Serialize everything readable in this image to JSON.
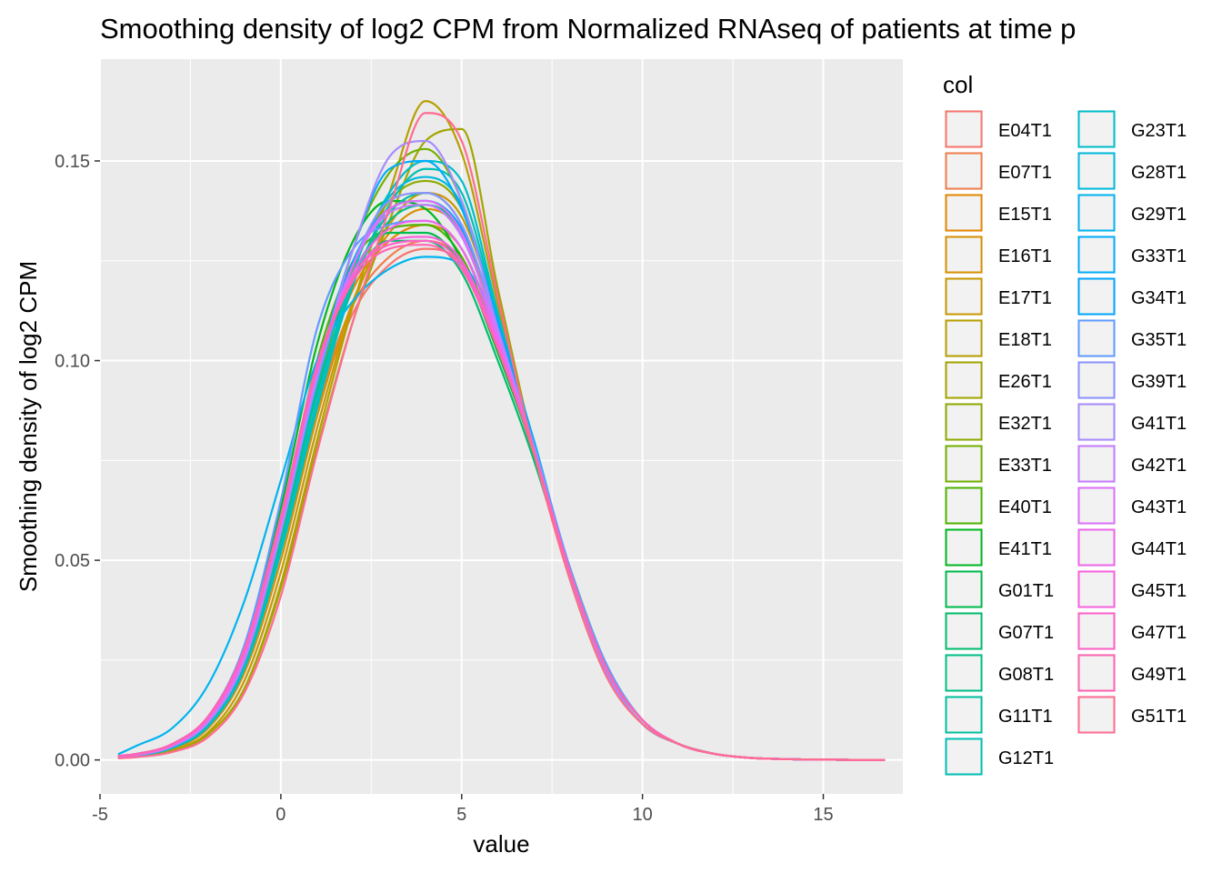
{
  "chart_data": {
    "type": "line",
    "title": "Smoothing density of log2 CPM from Normalized RNAseq of patients at time p",
    "xlabel": "value",
    "ylabel": "Smoothing density of log2 CPM",
    "xlim": [
      -5.0,
      17.2
    ],
    "ylim": [
      -0.0085,
      0.1755
    ],
    "x_ticks": [
      -5,
      0,
      5,
      10,
      15
    ],
    "x_tick_labels": [
      "-5",
      "0",
      "5",
      "10",
      "15"
    ],
    "y_ticks": [
      0,
      0.05,
      0.1,
      0.15
    ],
    "y_tick_labels": [
      "0.00",
      "0.05",
      "0.10",
      "0.15"
    ],
    "grid": true,
    "legend": {
      "title": "col",
      "position": "right",
      "columns": 2
    },
    "x": [
      -4.5,
      -4.0,
      -3.0,
      -2.0,
      -1.0,
      0.0,
      1.0,
      2.0,
      3.0,
      4.0,
      5.0,
      6.0,
      7.0,
      8.0,
      9.0,
      10.0,
      11.0,
      12.0,
      13.0,
      14.0,
      15.0,
      16.0,
      16.7
    ],
    "series": [
      {
        "name": "E04T1",
        "color": "#F8766D",
        "values": [
          0.0008,
          0.0012,
          0.0032,
          0.009,
          0.024,
          0.054,
          0.088,
          0.112,
          0.124,
          0.128,
          0.124,
          0.104,
          0.076,
          0.046,
          0.022,
          0.009,
          0.004,
          0.0015,
          0.0005,
          0.0002,
          0.0001,
          0.0,
          0.0
        ]
      },
      {
        "name": "E07T1",
        "color": "#F07E4C",
        "values": [
          0.0008,
          0.0012,
          0.0033,
          0.009,
          0.024,
          0.054,
          0.089,
          0.114,
          0.126,
          0.13,
          0.125,
          0.105,
          0.077,
          0.046,
          0.022,
          0.009,
          0.004,
          0.0015,
          0.0005,
          0.0002,
          0.0001,
          0.0,
          0.0
        ]
      },
      {
        "name": "E15T1",
        "color": "#E58700",
        "values": [
          0.0009,
          0.0013,
          0.0035,
          0.0095,
          0.025,
          0.056,
          0.092,
          0.118,
          0.13,
          0.134,
          0.128,
          0.106,
          0.077,
          0.046,
          0.022,
          0.009,
          0.004,
          0.0015,
          0.0005,
          0.0002,
          0.0001,
          0.0,
          0.0
        ]
      },
      {
        "name": "E16T1",
        "color": "#D89000",
        "values": [
          0.0007,
          0.001,
          0.0028,
          0.008,
          0.022,
          0.05,
          0.086,
          0.115,
          0.132,
          0.138,
          0.132,
          0.108,
          0.077,
          0.046,
          0.022,
          0.009,
          0.004,
          0.0015,
          0.0005,
          0.0002,
          0.0001,
          0.0,
          0.0
        ]
      },
      {
        "name": "E17T1",
        "color": "#C99800",
        "values": [
          0.0006,
          0.0009,
          0.0025,
          0.007,
          0.02,
          0.047,
          0.083,
          0.114,
          0.134,
          0.142,
          0.136,
          0.11,
          0.077,
          0.046,
          0.022,
          0.009,
          0.004,
          0.0015,
          0.0005,
          0.0002,
          0.0001,
          0.0,
          0.0
        ]
      },
      {
        "name": "E18T1",
        "color": "#B79F00",
        "values": [
          0.0005,
          0.0008,
          0.0022,
          0.0065,
          0.018,
          0.044,
          0.08,
          0.114,
          0.142,
          0.165,
          0.152,
          0.114,
          0.077,
          0.045,
          0.021,
          0.009,
          0.004,
          0.0015,
          0.0005,
          0.0002,
          0.0001,
          0.0,
          0.0
        ]
      },
      {
        "name": "E26T1",
        "color": "#A3A500",
        "values": [
          0.0005,
          0.0008,
          0.0022,
          0.0065,
          0.018,
          0.043,
          0.078,
          0.11,
          0.135,
          0.155,
          0.158,
          0.118,
          0.078,
          0.045,
          0.021,
          0.009,
          0.004,
          0.0015,
          0.0005,
          0.0002,
          0.0001,
          0.0,
          0.0
        ]
      },
      {
        "name": "E32T1",
        "color": "#8EAB00",
        "values": [
          0.0008,
          0.0012,
          0.0034,
          0.0095,
          0.025,
          0.056,
          0.093,
          0.123,
          0.14,
          0.145,
          0.138,
          0.11,
          0.078,
          0.046,
          0.022,
          0.009,
          0.004,
          0.0015,
          0.0005,
          0.0002,
          0.0001,
          0.0,
          0.0
        ]
      },
      {
        "name": "E33T1",
        "color": "#72B000",
        "values": [
          0.0008,
          0.0012,
          0.0033,
          0.0092,
          0.024,
          0.055,
          0.093,
          0.128,
          0.147,
          0.153,
          0.14,
          0.108,
          0.077,
          0.046,
          0.022,
          0.009,
          0.004,
          0.0015,
          0.0005,
          0.0002,
          0.0001,
          0.0,
          0.0
        ]
      },
      {
        "name": "E40T1",
        "color": "#4EB400",
        "values": [
          0.0009,
          0.0014,
          0.0038,
          0.0105,
          0.027,
          0.06,
          0.1,
          0.125,
          0.133,
          0.134,
          0.126,
          0.104,
          0.077,
          0.047,
          0.023,
          0.01,
          0.004,
          0.0015,
          0.0005,
          0.0002,
          0.0001,
          0.0,
          0.0
        ]
      },
      {
        "name": "E41T1",
        "color": "#00B81F",
        "values": [
          0.001,
          0.0015,
          0.004,
          0.011,
          0.028,
          0.063,
          0.104,
          0.13,
          0.14,
          0.138,
          0.125,
          0.102,
          0.077,
          0.048,
          0.024,
          0.01,
          0.004,
          0.0015,
          0.0005,
          0.0002,
          0.0001,
          0.0,
          0.0
        ]
      },
      {
        "name": "G01T1",
        "color": "#00BB4E",
        "values": [
          0.0009,
          0.0014,
          0.0038,
          0.0105,
          0.027,
          0.059,
          0.097,
          0.122,
          0.132,
          0.132,
          0.124,
          0.104,
          0.077,
          0.047,
          0.023,
          0.01,
          0.004,
          0.0015,
          0.0005,
          0.0002,
          0.0001,
          0.0,
          0.0
        ]
      },
      {
        "name": "G07T1",
        "color": "#00BD6D",
        "values": [
          0.0009,
          0.0013,
          0.0036,
          0.01,
          0.026,
          0.058,
          0.095,
          0.12,
          0.13,
          0.13,
          0.122,
          0.1,
          0.075,
          0.046,
          0.022,
          0.009,
          0.004,
          0.0015,
          0.0005,
          0.0002,
          0.0001,
          0.0,
          0.0
        ]
      },
      {
        "name": "G08T1",
        "color": "#00C087",
        "values": [
          0.0008,
          0.0012,
          0.0034,
          0.0095,
          0.025,
          0.056,
          0.092,
          0.12,
          0.135,
          0.139,
          0.132,
          0.106,
          0.077,
          0.046,
          0.022,
          0.009,
          0.004,
          0.0015,
          0.0005,
          0.0002,
          0.0001,
          0.0,
          0.0
        ]
      },
      {
        "name": "G11T1",
        "color": "#00C19F",
        "values": [
          0.0008,
          0.0012,
          0.0033,
          0.0092,
          0.024,
          0.054,
          0.09,
          0.12,
          0.137,
          0.142,
          0.134,
          0.108,
          0.077,
          0.046,
          0.022,
          0.009,
          0.004,
          0.0015,
          0.0005,
          0.0002,
          0.0001,
          0.0,
          0.0
        ]
      },
      {
        "name": "G12T1",
        "color": "#00C0B5",
        "values": [
          0.0007,
          0.0011,
          0.003,
          0.0085,
          0.023,
          0.052,
          0.088,
          0.119,
          0.139,
          0.148,
          0.142,
          0.111,
          0.078,
          0.046,
          0.022,
          0.009,
          0.004,
          0.0015,
          0.0005,
          0.0002,
          0.0001,
          0.0,
          0.0
        ]
      },
      {
        "name": "G23T1",
        "color": "#00BECA",
        "values": [
          0.0007,
          0.0011,
          0.003,
          0.0085,
          0.023,
          0.053,
          0.09,
          0.122,
          0.142,
          0.15,
          0.145,
          0.112,
          0.078,
          0.046,
          0.022,
          0.009,
          0.004,
          0.0015,
          0.0005,
          0.0002,
          0.0001,
          0.0,
          0.0
        ]
      },
      {
        "name": "G28T1",
        "color": "#00BADD",
        "values": [
          0.0008,
          0.0012,
          0.0034,
          0.0095,
          0.025,
          0.057,
          0.094,
          0.124,
          0.141,
          0.146,
          0.139,
          0.11,
          0.078,
          0.046,
          0.022,
          0.009,
          0.004,
          0.0015,
          0.0005,
          0.0002,
          0.0001,
          0.0,
          0.0
        ]
      },
      {
        "name": "G29T1",
        "color": "#00B4EF",
        "values": [
          0.0014,
          0.0035,
          0.008,
          0.019,
          0.04,
          0.07,
          0.1,
          0.115,
          0.123,
          0.126,
          0.124,
          0.108,
          0.08,
          0.047,
          0.023,
          0.01,
          0.004,
          0.0015,
          0.0005,
          0.0002,
          0.0001,
          0.0,
          0.0
        ]
      },
      {
        "name": "G33T1",
        "color": "#00ADFA",
        "values": [
          0.0008,
          0.0012,
          0.0034,
          0.0095,
          0.025,
          0.058,
          0.097,
          0.128,
          0.148,
          0.15,
          0.138,
          0.11,
          0.079,
          0.047,
          0.023,
          0.01,
          0.004,
          0.0015,
          0.0005,
          0.0002,
          0.0001,
          0.0,
          0.0
        ]
      },
      {
        "name": "G34T1",
        "color": "#00A5FF",
        "values": [
          0.0009,
          0.0013,
          0.0036,
          0.01,
          0.026,
          0.059,
          0.097,
          0.125,
          0.138,
          0.14,
          0.133,
          0.109,
          0.079,
          0.047,
          0.023,
          0.01,
          0.004,
          0.0015,
          0.0005,
          0.0002,
          0.0001,
          0.0,
          0.0
        ]
      },
      {
        "name": "G35T1",
        "color": "#619CFF",
        "values": [
          0.001,
          0.0015,
          0.004,
          0.011,
          0.029,
          0.065,
          0.108,
          0.128,
          0.134,
          0.135,
          0.128,
          0.106,
          0.079,
          0.048,
          0.024,
          0.01,
          0.004,
          0.0015,
          0.0005,
          0.0002,
          0.0001,
          0.0,
          0.0
        ]
      },
      {
        "name": "G39T1",
        "color": "#8B93FF",
        "values": [
          0.0009,
          0.0014,
          0.0037,
          0.0102,
          0.026,
          0.058,
          0.095,
          0.124,
          0.14,
          0.142,
          0.134,
          0.108,
          0.078,
          0.047,
          0.023,
          0.01,
          0.004,
          0.0015,
          0.0005,
          0.0002,
          0.0001,
          0.0,
          0.0
        ]
      },
      {
        "name": "G41T1",
        "color": "#A88BFF",
        "values": [
          0.0008,
          0.0012,
          0.0034,
          0.0095,
          0.025,
          0.057,
          0.096,
          0.128,
          0.151,
          0.155,
          0.14,
          0.108,
          0.077,
          0.046,
          0.022,
          0.009,
          0.004,
          0.0015,
          0.0005,
          0.0002,
          0.0001,
          0.0,
          0.0
        ]
      },
      {
        "name": "G42T1",
        "color": "#C77CFF",
        "values": [
          0.0009,
          0.0013,
          0.0036,
          0.01,
          0.026,
          0.059,
          0.097,
          0.124,
          0.137,
          0.139,
          0.131,
          0.107,
          0.078,
          0.047,
          0.023,
          0.01,
          0.004,
          0.0015,
          0.0005,
          0.0002,
          0.0001,
          0.0,
          0.0
        ]
      },
      {
        "name": "G43T1",
        "color": "#DD71FA",
        "values": [
          0.0009,
          0.0013,
          0.0036,
          0.0102,
          0.026,
          0.059,
          0.097,
          0.124,
          0.138,
          0.14,
          0.132,
          0.106,
          0.077,
          0.047,
          0.023,
          0.01,
          0.004,
          0.0015,
          0.0005,
          0.0002,
          0.0001,
          0.0,
          0.0
        ]
      },
      {
        "name": "G44T1",
        "color": "#EE67EC",
        "values": [
          0.001,
          0.0014,
          0.0038,
          0.0105,
          0.027,
          0.06,
          0.098,
          0.122,
          0.133,
          0.135,
          0.128,
          0.105,
          0.077,
          0.047,
          0.023,
          0.01,
          0.004,
          0.0015,
          0.0005,
          0.0002,
          0.0001,
          0.0,
          0.0
        ]
      },
      {
        "name": "G45T1",
        "color": "#F962DD",
        "values": [
          0.001,
          0.0014,
          0.0038,
          0.0105,
          0.027,
          0.06,
          0.098,
          0.121,
          0.13,
          0.131,
          0.125,
          0.104,
          0.077,
          0.047,
          0.023,
          0.01,
          0.004,
          0.0015,
          0.0005,
          0.0002,
          0.0001,
          0.0,
          0.0
        ]
      },
      {
        "name": "G47T1",
        "color": "#FF61C9",
        "values": [
          0.001,
          0.0015,
          0.004,
          0.011,
          0.028,
          0.061,
          0.099,
          0.121,
          0.129,
          0.13,
          0.124,
          0.103,
          0.077,
          0.047,
          0.023,
          0.01,
          0.004,
          0.0015,
          0.0005,
          0.0002,
          0.0001,
          0.0,
          0.0
        ]
      },
      {
        "name": "G49T1",
        "color": "#FF64B0",
        "values": [
          0.001,
          0.0015,
          0.004,
          0.011,
          0.028,
          0.06,
          0.098,
          0.12,
          0.128,
          0.129,
          0.123,
          0.103,
          0.077,
          0.047,
          0.023,
          0.01,
          0.004,
          0.0015,
          0.0005,
          0.0002,
          0.0001,
          0.0,
          0.0
        ]
      },
      {
        "name": "G51T1",
        "color": "#FF6C91",
        "values": [
          0.0004,
          0.0007,
          0.002,
          0.0058,
          0.017,
          0.041,
          0.077,
          0.11,
          0.138,
          0.162,
          0.155,
          0.116,
          0.077,
          0.045,
          0.021,
          0.009,
          0.004,
          0.0015,
          0.0005,
          0.0002,
          0.0001,
          0.0,
          0.0
        ]
      }
    ],
    "colors": {
      "panel_background": "#EBEBEB",
      "gridline": "#FFFFFF",
      "legend_key_fill": "#F2F2F2",
      "axis_text": "#4D4D4D",
      "tick": "#333333"
    }
  }
}
